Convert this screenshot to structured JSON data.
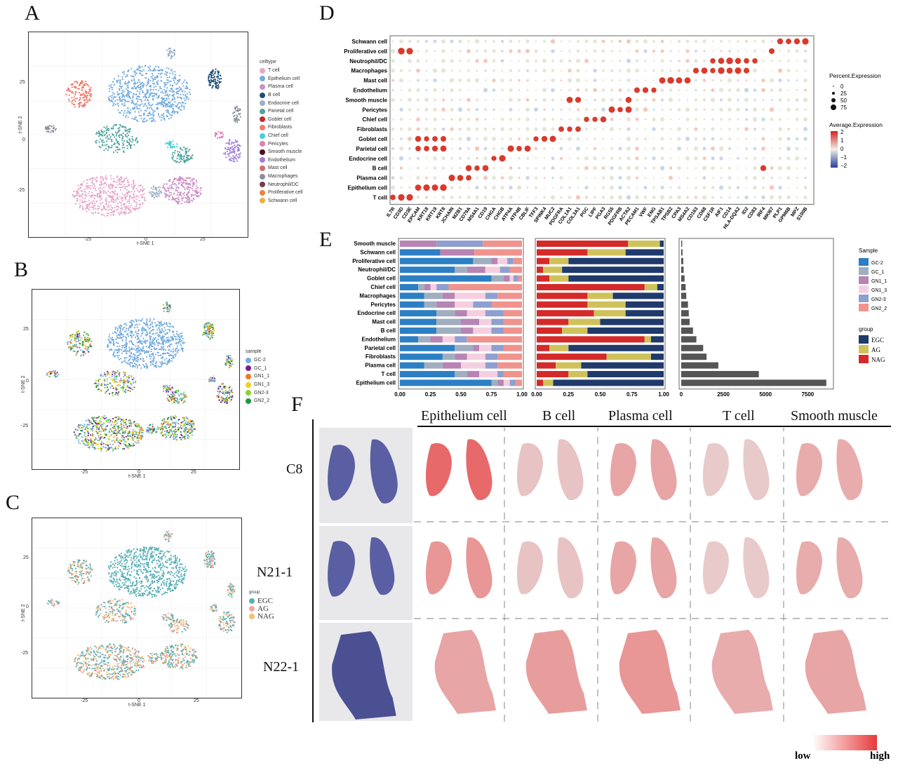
{
  "panels": {
    "A": "A",
    "B": "B",
    "C": "C",
    "D": "D",
    "E": "E",
    "F": "F"
  },
  "tsne_axes": {
    "xlabel": "t-SNE 1",
    "ylabel": "t-SNE 2",
    "xticks": [
      "-25",
      "0",
      "25"
    ],
    "yticks": [
      "25",
      "0",
      "-25"
    ]
  },
  "panel_A_legend": {
    "title": "celltype",
    "items": [
      {
        "label": "T cell",
        "color": "#e8a6c8"
      },
      {
        "label": "Epithelium cell",
        "color": "#74acdf"
      },
      {
        "label": "Plasma cell",
        "color": "#cc8fc7"
      },
      {
        "label": "B cell",
        "color": "#1f4e79"
      },
      {
        "label": "Endocrine cell",
        "color": "#9ab0c4"
      },
      {
        "label": "Parietal cell",
        "color": "#4fa3a0"
      },
      {
        "label": "Goblet cell",
        "color": "#c62828"
      },
      {
        "label": "Fibroblasts",
        "color": "#f07a6a"
      },
      {
        "label": "Chief cell",
        "color": "#40d0d8"
      },
      {
        "label": "Pericytes",
        "color": "#e07fb0"
      },
      {
        "label": "Smooth muscle",
        "color": "#4a1220"
      },
      {
        "label": "Endothelium",
        "color": "#9f7fdc"
      },
      {
        "label": "Mast cell",
        "color": "#cc7070"
      },
      {
        "label": "Macrophages",
        "color": "#8a8f99"
      },
      {
        "label": "Neutrophil/DC",
        "color": "#7a3a4a"
      },
      {
        "label": "Proliferative cell",
        "color": "#f08040"
      },
      {
        "label": "Schwann cell",
        "color": "#e8b040"
      }
    ]
  },
  "panel_B_legend": {
    "title": "sample",
    "items": [
      {
        "label": "GC-2",
        "color": "#74acdf"
      },
      {
        "label": "GC_1",
        "color": "#7a1f8a"
      },
      {
        "label": "GN1_1",
        "color": "#f07a20"
      },
      {
        "label": "GN1_3",
        "color": "#f0d020"
      },
      {
        "label": "GN2-3",
        "color": "#90d030"
      },
      {
        "label": "GN2_2",
        "color": "#1a9a40"
      }
    ]
  },
  "panel_C_legend": {
    "title": "group",
    "items": [
      {
        "label": "EGC",
        "color": "#5ab0b8"
      },
      {
        "label": "AG",
        "color": "#f0a8a0"
      },
      {
        "label": "NAG",
        "color": "#f5c070"
      }
    ]
  },
  "dotplot": {
    "cell_types": [
      "Schwann cell",
      "Proliferative cell",
      "Neutrophil/DC",
      "Macrophages",
      "Mast cell",
      "Endothelium",
      "Smooth muscle",
      "Pericytes",
      "Chief cell",
      "Fibroblasts",
      "Goblet cell",
      "Parietal cell",
      "Endocrine cell",
      "B cell",
      "Plasma cell",
      "Epithelium cell",
      "T cell"
    ],
    "genes": [
      "IL7R",
      "CD3D",
      "CD3E",
      "EPCAM",
      "KRT18",
      "KRT19",
      "KRT8",
      "JCHAIN",
      "MZB1",
      "CD79A",
      "MS4A1",
      "CD19",
      "CHGA",
      "CHGB",
      "ATP4A",
      "ATP4B",
      "CBLIF",
      "TFF3",
      "SPINK4",
      "MUC2",
      "PDGFRA",
      "COL1A1",
      "COL3A1",
      "PGC",
      "LIPF",
      "PGA3",
      "RGS5",
      "PDGFRB",
      "ACTA2",
      "PECAM1",
      "VWF",
      "ENG",
      "TPSAB1",
      "TPSB2",
      "CPA3",
      "MS4A2",
      "CD163",
      "CD68",
      "CSF1R",
      "AIF1",
      "CD14",
      "HLA-DQA2",
      "ID2",
      "CD83",
      "IRF4",
      "MKI67",
      "PLP1",
      "GPM6B",
      "MPZ",
      "S100B"
    ],
    "legend_pct_title": "Percent.Expression",
    "legend_pct_values": [
      "0",
      "25",
      "50",
      "75"
    ],
    "legend_avg_title": "Average.Expression",
    "legend_avg_ticks": [
      "2",
      "1",
      "0",
      "−1",
      "−2"
    ]
  },
  "barplot": {
    "cell_types": [
      "Smooth muscle",
      "Schwann cell",
      "Proliferative cell",
      "Neutrophil/DC",
      "Goblet cell",
      "Chief cell",
      "Macrophages",
      "Pericytes",
      "Endocrine cell",
      "Mast cell",
      "B cell",
      "Endothelium",
      "Parietal cell",
      "Fibroblasts",
      "Plasma cell",
      "T cell",
      "Epithelium cell"
    ],
    "prop_ticks": [
      "0.00",
      "0.25",
      "0.50",
      "0.75",
      "1.00"
    ],
    "count_ticks": [
      "0",
      "2500",
      "5000",
      "7500"
    ],
    "counts": [
      60,
      80,
      120,
      140,
      200,
      260,
      300,
      400,
      450,
      500,
      700,
      900,
      1300,
      1500,
      2200,
      4600,
      8600
    ],
    "sample_colors": [
      "#2c7fc4",
      "#a0aec0",
      "#b784b4",
      "#f5cfe0",
      "#8f9fd0",
      "#f0938d"
    ],
    "sample_props": [
      [
        0.0,
        0.0,
        0.3,
        0.0,
        0.38,
        0.32
      ],
      [
        0.33,
        0.0,
        0.28,
        0.0,
        0.0,
        0.39
      ],
      [
        0.6,
        0.15,
        0.05,
        0.08,
        0.05,
        0.07
      ],
      [
        0.45,
        0.1,
        0.15,
        0.12,
        0.08,
        0.1
      ],
      [
        0.75,
        0.1,
        0.05,
        0.03,
        0.04,
        0.03
      ],
      [
        0.15,
        0.05,
        0.05,
        0.05,
        0.1,
        0.6
      ],
      [
        0.2,
        0.15,
        0.1,
        0.25,
        0.1,
        0.2
      ],
      [
        0.2,
        0.1,
        0.15,
        0.15,
        0.15,
        0.25
      ],
      [
        0.3,
        0.15,
        0.1,
        0.15,
        0.15,
        0.15
      ],
      [
        0.3,
        0.2,
        0.15,
        0.1,
        0.1,
        0.15
      ],
      [
        0.3,
        0.2,
        0.1,
        0.15,
        0.1,
        0.15
      ],
      [
        0.15,
        0.1,
        0.1,
        0.1,
        0.1,
        0.45
      ],
      [
        0.45,
        0.15,
        0.05,
        0.1,
        0.1,
        0.15
      ],
      [
        0.35,
        0.1,
        0.1,
        0.15,
        0.1,
        0.2
      ],
      [
        0.2,
        0.15,
        0.15,
        0.2,
        0.1,
        0.2
      ],
      [
        0.45,
        0.1,
        0.1,
        0.15,
        0.05,
        0.15
      ],
      [
        0.75,
        0.05,
        0.05,
        0.05,
        0.05,
        0.05
      ]
    ],
    "group_colors": [
      "#d42a2a",
      "#cfc25a",
      "#1f3a6b"
    ],
    "group_props": [
      [
        0.72,
        0.25,
        0.03
      ],
      [
        0.4,
        0.3,
        0.3
      ],
      [
        0.1,
        0.15,
        0.75
      ],
      [
        0.05,
        0.15,
        0.8
      ],
      [
        0.1,
        0.15,
        0.75
      ],
      [
        0.85,
        0.1,
        0.05
      ],
      [
        0.4,
        0.2,
        0.4
      ],
      [
        0.4,
        0.3,
        0.3
      ],
      [
        0.45,
        0.25,
        0.3
      ],
      [
        0.25,
        0.25,
        0.5
      ],
      [
        0.2,
        0.2,
        0.6
      ],
      [
        0.85,
        0.05,
        0.1
      ],
      [
        0.1,
        0.15,
        0.75
      ],
      [
        0.55,
        0.35,
        0.1
      ],
      [
        0.15,
        0.2,
        0.65
      ],
      [
        0.25,
        0.15,
        0.6
      ],
      [
        0.05,
        0.08,
        0.87
      ]
    ],
    "sample_legend_title": "Sample",
    "sample_legend": [
      "GC-2",
      "GC_1",
      "GN1_1",
      "GN1_3",
      "GN2-3",
      "GN2_2"
    ],
    "group_legend_title": "group",
    "group_legend": [
      "EGC",
      "AG",
      "NAG"
    ]
  },
  "spatial": {
    "columns": [
      "Epithelium cell",
      "B cell",
      "Plasma cell",
      "T cell",
      "Smooth muscle"
    ],
    "rows": [
      "C8",
      "N21-1",
      "N22-1"
    ],
    "scale_low": "low",
    "scale_high": "high"
  }
}
